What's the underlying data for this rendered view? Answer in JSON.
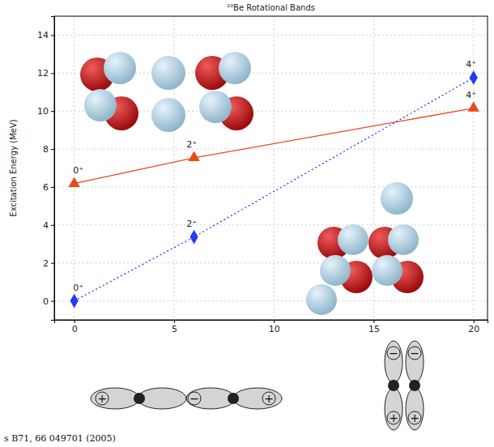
{
  "chart_data": {
    "type": "line",
    "title": "¹⁰Be Rotational Bands",
    "y_label": "Excitation Energy (MeV)",
    "x": [
      0,
      6,
      20
    ],
    "series": [
      {
        "color": "#e84a1a",
        "marker": "triangle",
        "line_style": "solid",
        "values": [
          6.18,
          7.54,
          10.15
        ],
        "labels": [
          "0⁺",
          "2⁺",
          "4⁺"
        ]
      },
      {
        "color": "#1f3cf0",
        "marker": "diamond",
        "line_style": "dotted",
        "values": [
          0,
          3.37,
          11.76
        ],
        "labels": [
          "0⁺",
          "2⁺",
          "4⁺"
        ]
      }
    ],
    "xlim": [
      -1,
      20.7
    ],
    "xticks": [
      0,
      5,
      10,
      15,
      20
    ],
    "ylim": [
      -1,
      15
    ],
    "yticks": [
      0,
      2,
      4,
      6,
      8,
      10,
      12,
      14
    ],
    "grid": true,
    "annotations": [
      "s B71, 66 049701 (2005)"
    ],
    "orbital_signs": {
      "sigma": [
        "+",
        "−",
        "+"
      ],
      "pi": [
        "−",
        "+",
        "−",
        "+"
      ]
    }
  }
}
